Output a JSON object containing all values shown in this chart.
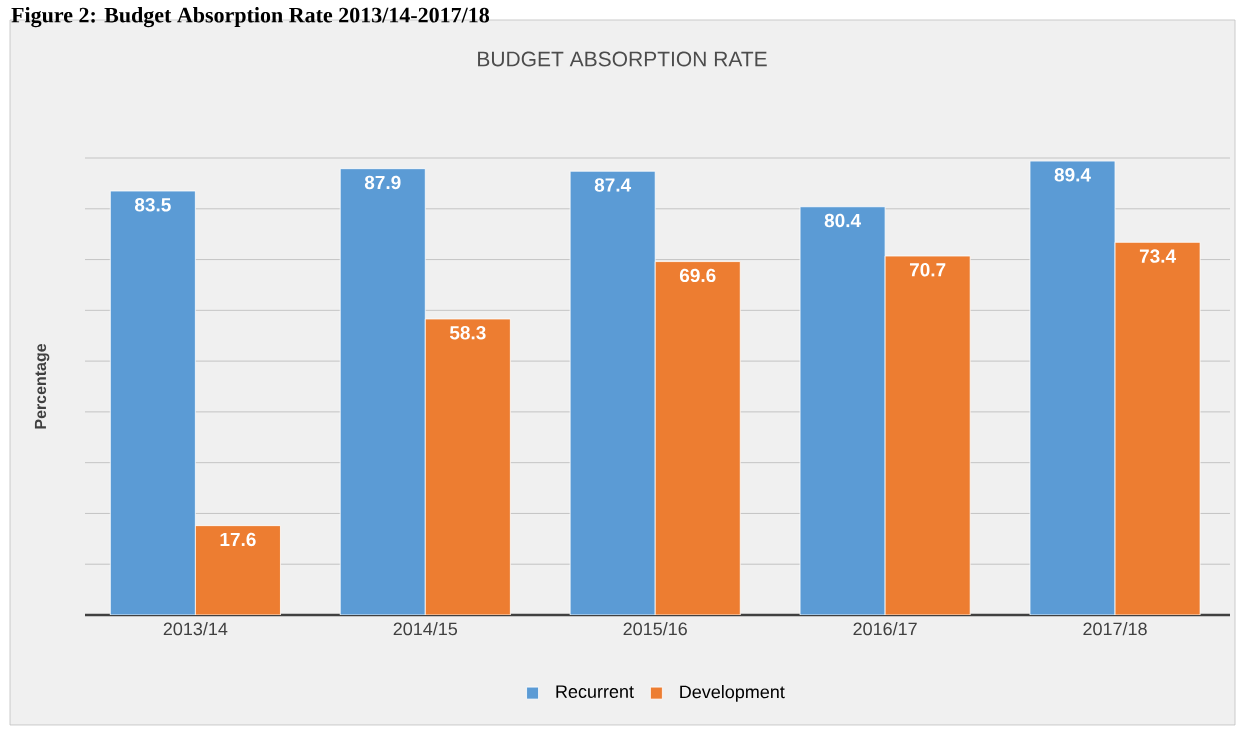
{
  "chart_data": {
    "type": "bar",
    "title": "BUDGET ABSORPTION RATE",
    "ylabel": "Percentage",
    "annotations": [
      "Figure 2: Budget Absorption Rate 2013/14-2017/18"
    ],
    "categories": [
      "2013/14",
      "2014/15",
      "2015/16",
      "2016/17",
      "2017/18"
    ],
    "series": [
      {
        "name": "Recurrent",
        "color": "#5b9bd5",
        "values": [
          83.5,
          87.9,
          87.4,
          80.4,
          89.4
        ]
      },
      {
        "name": "Development",
        "color": "#ed7d31",
        "values": [
          17.6,
          58.3,
          69.6,
          70.7,
          73.4
        ]
      }
    ],
    "ylim": [
      0,
      90
    ],
    "tick_labels": "x",
    "grid": "y",
    "legend": "bottom",
    "data_labels": true
  }
}
